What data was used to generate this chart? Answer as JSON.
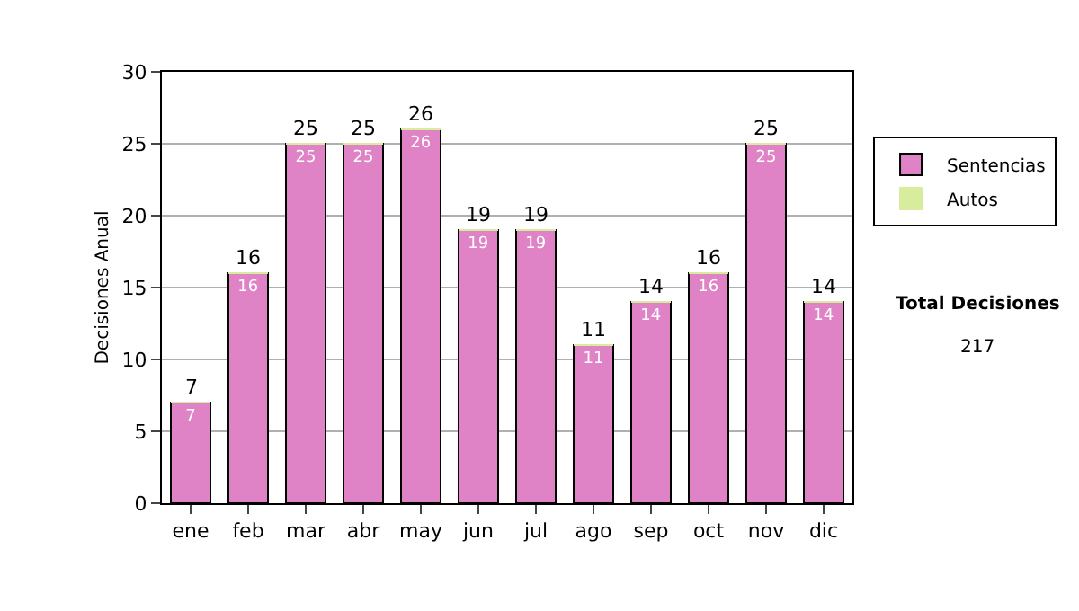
{
  "chart_data": {
    "type": "bar",
    "ylabel": "Decisiones Anual",
    "categories": [
      "ene",
      "feb",
      "mar",
      "abr",
      "may",
      "jun",
      "jul",
      "ago",
      "sep",
      "oct",
      "nov",
      "dic"
    ],
    "series": [
      {
        "name": "Sentencias",
        "color": "#e083c6",
        "values": [
          7,
          16,
          25,
          25,
          26,
          19,
          19,
          11,
          14,
          16,
          25,
          14
        ],
        "value_labels": [
          "7",
          "16",
          "25",
          "25",
          "26",
          "19",
          "19",
          "11",
          "14",
          "16",
          "25",
          "14"
        ]
      },
      {
        "name": "Autos",
        "color": "#d8ec9e",
        "values": [
          0,
          0,
          0,
          0,
          0,
          0,
          0,
          0,
          0,
          0,
          0,
          0
        ]
      }
    ],
    "stacked": true,
    "totals": [
      "7",
      "16",
      "25",
      "25",
      "26",
      "19",
      "19",
      "11",
      "14",
      "16",
      "25",
      "14"
    ],
    "ylim": [
      0,
      30
    ],
    "yticks": [
      0,
      5,
      10,
      15,
      20,
      25,
      30
    ],
    "grid": "y",
    "legend": "right",
    "annotations": [
      "Total Decisiones",
      "217"
    ]
  }
}
